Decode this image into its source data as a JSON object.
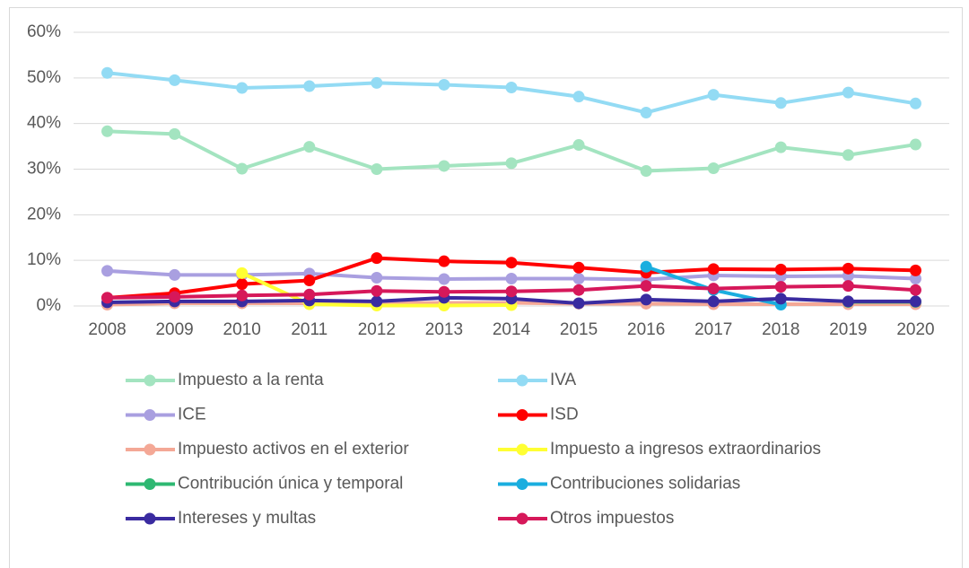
{
  "chart_data": {
    "type": "line",
    "x": [
      "2008",
      "2009",
      "2010",
      "2011",
      "2012",
      "2013",
      "2014",
      "2015",
      "2016",
      "2017",
      "2018",
      "2019",
      "2020"
    ],
    "ylim": [
      0,
      60
    ],
    "yticks": [
      {
        "value": 0,
        "label": "0%"
      },
      {
        "value": 10,
        "label": "10%"
      },
      {
        "value": 20,
        "label": "20%"
      },
      {
        "value": 30,
        "label": "30%"
      },
      {
        "value": 40,
        "label": "40%"
      },
      {
        "value": 50,
        "label": "50%"
      },
      {
        "value": 60,
        "label": "60%"
      }
    ],
    "grid": true,
    "legend": "bottom",
    "series": [
      {
        "name": "Impuesto a la renta",
        "color": "#a3e4c0",
        "values": [
          38.3,
          37.7,
          30.1,
          34.9,
          30.0,
          30.7,
          31.3,
          35.3,
          29.6,
          30.2,
          34.8,
          33.1,
          35.4
        ]
      },
      {
        "name": "IVA",
        "color": "#93dbf4",
        "values": [
          51.1,
          49.5,
          47.8,
          48.2,
          48.9,
          48.5,
          47.9,
          45.9,
          42.4,
          46.3,
          44.5,
          46.8,
          44.4
        ]
      },
      {
        "name": "ICE",
        "color": "#a99fe0",
        "values": [
          7.7,
          6.8,
          6.8,
          7.1,
          6.2,
          5.9,
          6.0,
          6.0,
          5.8,
          6.7,
          6.5,
          6.6,
          6.0
        ]
      },
      {
        "name": "ISD",
        "color": "#ff0000",
        "values": [
          1.8,
          2.8,
          4.8,
          5.6,
          10.5,
          9.8,
          9.5,
          8.4,
          7.3,
          8.1,
          8.0,
          8.2,
          7.8
        ]
      },
      {
        "name": "Impuesto activos en el exterior",
        "color": "#f4a896",
        "values": [
          0.3,
          0.6,
          0.6,
          0.6,
          0.6,
          0.7,
          0.7,
          0.5,
          0.5,
          0.4,
          0.4,
          0.4,
          0.4
        ]
      },
      {
        "name": "Impuesto a ingresos extraordinarios",
        "color": "#ffff33",
        "values": [
          null,
          null,
          7.2,
          0.4,
          0.1,
          0.1,
          0.2,
          null,
          null,
          null,
          null,
          null,
          null
        ]
      },
      {
        "name": "Contribución única y temporal",
        "color": "#2eb872",
        "values": [
          null,
          null,
          null,
          null,
          null,
          null,
          null,
          null,
          null,
          null,
          null,
          0.9,
          0.9
        ]
      },
      {
        "name": "Contribuciones solidarias",
        "color": "#1aaedf",
        "values": [
          null,
          null,
          null,
          null,
          null,
          null,
          null,
          null,
          8.6,
          3.5,
          0.3,
          null,
          null
        ]
      },
      {
        "name": "Intereses y multas",
        "color": "#3a2ba0",
        "values": [
          0.8,
          1.0,
          1.0,
          1.2,
          1.0,
          1.8,
          1.6,
          0.6,
          1.4,
          1.0,
          1.6,
          1.0,
          1.0
        ]
      },
      {
        "name": "Otros impuestos",
        "color": "#d6185a",
        "values": [
          1.8,
          2.0,
          2.3,
          2.5,
          3.3,
          3.1,
          3.2,
          3.5,
          4.4,
          3.8,
          4.2,
          4.4,
          3.5
        ]
      }
    ]
  }
}
